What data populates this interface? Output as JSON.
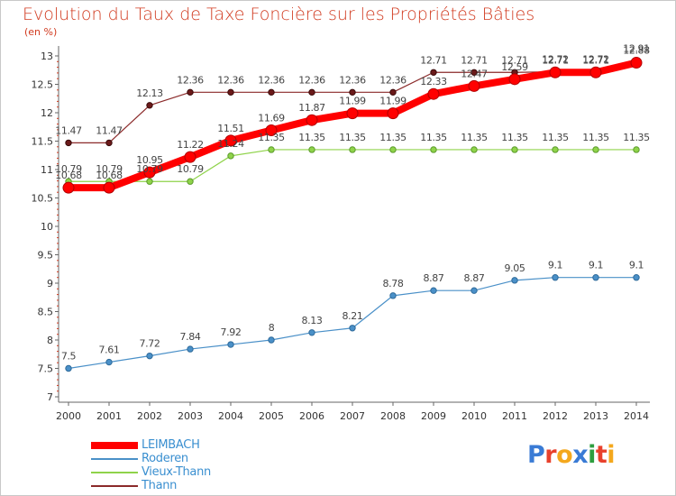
{
  "title": "Evolution du Taux de Taxe Foncière sur les Propriétés Bâties",
  "unit_label": "(en %)",
  "logo": {
    "text": "Proxiti",
    "letters": [
      "P",
      "r",
      "o",
      "x",
      "i",
      "t",
      "i"
    ],
    "colors": [
      "#3a7bd5",
      "#e8412c",
      "#f4a81d",
      "#3a7bd5",
      "#2e9e3f",
      "#e8412c",
      "#f4a81d"
    ]
  },
  "chart_data": {
    "type": "line",
    "title": "Evolution du Taux de Taxe Foncière sur les Propriétés Bâties",
    "ylabel": "(en %)",
    "x": [
      "2000",
      "2001",
      "2002",
      "2003",
      "2004",
      "2005",
      "2006",
      "2007",
      "2008",
      "2009",
      "2010",
      "2011",
      "2012",
      "2013",
      "2014"
    ],
    "ylim": [
      7,
      13
    ],
    "yticks": [
      "7",
      "7.5",
      "8",
      "8.5",
      "9",
      "9.5",
      "10",
      "10.5",
      "11",
      "11.5",
      "12",
      "12.5",
      "13"
    ],
    "grid": false,
    "legend_position": "bottom-left",
    "series": [
      {
        "name": "LEIMBACH",
        "color": "#ff0000",
        "values": [
          10.68,
          10.68,
          10.95,
          11.22,
          11.51,
          11.69,
          11.87,
          11.99,
          11.99,
          12.33,
          12.47,
          12.59,
          12.71,
          12.71,
          12.88
        ],
        "labels": [
          "10.68",
          "10.68",
          "10.95",
          "11.22",
          "11.51",
          "11.69",
          "11.87",
          "11.99",
          "11.99",
          "12.33",
          "12.47",
          "12.59",
          "12.71",
          "12.71",
          "12.88"
        ]
      },
      {
        "name": "Roderen",
        "color": "#4a90c8",
        "values": [
          7.5,
          7.61,
          7.72,
          7.84,
          7.92,
          8,
          8.13,
          8.21,
          8.78,
          8.87,
          8.87,
          9.05,
          9.1,
          9.1,
          9.1
        ],
        "labels": [
          "7.5",
          "7.61",
          "7.72",
          "7.84",
          "7.92",
          "8",
          "8.13",
          "8.21",
          "8.78",
          "8.87",
          "8.87",
          "9.05",
          "9.1",
          "9.1",
          "9.1"
        ]
      },
      {
        "name": "Vieux-Thann",
        "color": "#8fd34a",
        "values": [
          10.79,
          10.79,
          10.79,
          10.79,
          11.24,
          11.35,
          11.35,
          11.35,
          11.35,
          11.35,
          11.35,
          11.35,
          11.35,
          11.35,
          11.35
        ],
        "labels": [
          "10.79",
          "10.79",
          "10.79",
          "10.79",
          "11.24",
          "11.35",
          "11.35",
          "11.35",
          "11.35",
          "11.35",
          "11.35",
          "11.35",
          "11.35",
          "11.35",
          "11.35"
        ]
      },
      {
        "name": "Thann",
        "color": "#8b2a2a",
        "values": [
          11.47,
          11.47,
          12.13,
          12.36,
          12.36,
          12.36,
          12.36,
          12.36,
          12.36,
          12.71,
          12.71,
          12.71,
          12.72,
          12.72,
          12.91
        ],
        "labels": [
          "11.47",
          "11.47",
          "12.13",
          "12.36",
          "12.36",
          "12.36",
          "12.36",
          "12.36",
          "12.36",
          "12.71",
          "12.71",
          "12.71",
          "12.72",
          "12.72",
          "12.91"
        ]
      }
    ]
  }
}
